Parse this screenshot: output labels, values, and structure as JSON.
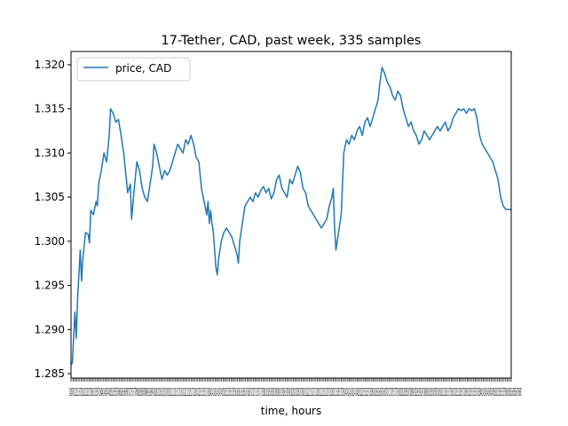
{
  "chart_data": {
    "type": "line",
    "title": "17-Tether, CAD, past week, 335 samples",
    "xlabel": "time, hours",
    "ylabel": "",
    "ylim": [
      1.2845,
      1.3215
    ],
    "yticks": [
      1.285,
      1.29,
      1.295,
      1.3,
      1.305,
      1.31,
      1.315,
      1.32
    ],
    "ytick_labels": [
      "1.285",
      "1.290",
      "1.295",
      "1.300",
      "1.305",
      "1.310",
      "1.315",
      "1.320"
    ],
    "xlim": [
      0,
      334
    ],
    "x_tick_label_text": "02457810121315171820222325272830323335373840424345474850525355575860626365676870727375777880828385878890929395979810010210310510710811011211311511711812012212312512712813013213313513713814014214314514714815015215315515715816016216316516716817017217317517717818018218318518718819019219319519719820020220320520720821021221321521721822022222322522722823023223323523723824024224324524724825025225325525725826026226326526726827027227327527727828028228328528728829029229329529729830030230330530730831031231331531731832032232332532732833033233333533733834034234334534734835035235335535735836036236336536736837",
    "legend_position": "upper-left",
    "grid": false,
    "colors": {
      "line": "#1f77b4"
    },
    "series": [
      {
        "name": "price, CAD",
        "anchors": [
          [
            0,
            1.286
          ],
          [
            1,
            1.2862
          ],
          [
            3,
            1.292
          ],
          [
            4,
            1.289
          ],
          [
            5,
            1.2935
          ],
          [
            7,
            1.299
          ],
          [
            8,
            1.2955
          ],
          [
            9,
            1.298
          ],
          [
            11,
            1.301
          ],
          [
            13,
            1.3008
          ],
          [
            14,
            1.2998
          ],
          [
            15,
            1.3035
          ],
          [
            17,
            1.303
          ],
          [
            19,
            1.3045
          ],
          [
            20,
            1.304
          ],
          [
            21,
            1.3065
          ],
          [
            23,
            1.308
          ],
          [
            25,
            1.31
          ],
          [
            27,
            1.309
          ],
          [
            29,
            1.312
          ],
          [
            30,
            1.315
          ],
          [
            32,
            1.3145
          ],
          [
            34,
            1.3135
          ],
          [
            36,
            1.3138
          ],
          [
            38,
            1.312
          ],
          [
            40,
            1.31
          ],
          [
            41,
            1.3085
          ],
          [
            43,
            1.3055
          ],
          [
            45,
            1.3065
          ],
          [
            46,
            1.3025
          ],
          [
            48,
            1.306
          ],
          [
            50,
            1.309
          ],
          [
            52,
            1.308
          ],
          [
            54,
            1.306
          ],
          [
            56,
            1.305
          ],
          [
            58,
            1.3045
          ],
          [
            60,
            1.3065
          ],
          [
            62,
            1.3085
          ],
          [
            63,
            1.311
          ],
          [
            65,
            1.31
          ],
          [
            67,
            1.3085
          ],
          [
            69,
            1.307
          ],
          [
            71,
            1.308
          ],
          [
            73,
            1.3075
          ],
          [
            75,
            1.308
          ],
          [
            77,
            1.309
          ],
          [
            79,
            1.31
          ],
          [
            81,
            1.311
          ],
          [
            83,
            1.3105
          ],
          [
            85,
            1.31
          ],
          [
            87,
            1.3115
          ],
          [
            89,
            1.311
          ],
          [
            91,
            1.312
          ],
          [
            93,
            1.311
          ],
          [
            95,
            1.3095
          ],
          [
            97,
            1.309
          ],
          [
            99,
            1.306
          ],
          [
            101,
            1.3045
          ],
          [
            103,
            1.303
          ],
          [
            104,
            1.3045
          ],
          [
            105,
            1.302
          ],
          [
            106,
            1.3035
          ],
          [
            107,
            1.302
          ],
          [
            108,
            1.301
          ],
          [
            109,
            1.299
          ],
          [
            110,
            1.297
          ],
          [
            111,
            1.2962
          ],
          [
            112,
            1.298
          ],
          [
            114,
            1.3
          ],
          [
            116,
            1.301
          ],
          [
            118,
            1.3015
          ],
          [
            120,
            1.301
          ],
          [
            122,
            1.3005
          ],
          [
            124,
            1.2995
          ],
          [
            126,
            1.2985
          ],
          [
            127,
            1.2975
          ],
          [
            128,
            1.3
          ],
          [
            130,
            1.302
          ],
          [
            132,
            1.304
          ],
          [
            134,
            1.3045
          ],
          [
            136,
            1.305
          ],
          [
            138,
            1.3045
          ],
          [
            140,
            1.3055
          ],
          [
            142,
            1.305
          ],
          [
            144,
            1.3058
          ],
          [
            146,
            1.3062
          ],
          [
            148,
            1.3055
          ],
          [
            150,
            1.306
          ],
          [
            152,
            1.3048
          ],
          [
            154,
            1.3055
          ],
          [
            156,
            1.307
          ],
          [
            158,
            1.3075
          ],
          [
            160,
            1.306
          ],
          [
            162,
            1.3055
          ],
          [
            164,
            1.305
          ],
          [
            166,
            1.307
          ],
          [
            168,
            1.3065
          ],
          [
            170,
            1.3075
          ],
          [
            172,
            1.3085
          ],
          [
            174,
            1.3078
          ],
          [
            176,
            1.306
          ],
          [
            178,
            1.3055
          ],
          [
            180,
            1.304
          ],
          [
            182,
            1.3035
          ],
          [
            184,
            1.303
          ],
          [
            186,
            1.3025
          ],
          [
            188,
            1.302
          ],
          [
            190,
            1.3015
          ],
          [
            192,
            1.302
          ],
          [
            194,
            1.3025
          ],
          [
            196,
            1.304
          ],
          [
            198,
            1.305
          ],
          [
            199,
            1.306
          ],
          [
            200,
            1.3015
          ],
          [
            201,
            1.299
          ],
          [
            203,
            1.301
          ],
          [
            205,
            1.303
          ],
          [
            207,
            1.31
          ],
          [
            209,
            1.3115
          ],
          [
            211,
            1.311
          ],
          [
            213,
            1.312
          ],
          [
            215,
            1.3115
          ],
          [
            217,
            1.3125
          ],
          [
            219,
            1.313
          ],
          [
            221,
            1.312
          ],
          [
            223,
            1.3135
          ],
          [
            225,
            1.314
          ],
          [
            227,
            1.313
          ],
          [
            229,
            1.314
          ],
          [
            231,
            1.315
          ],
          [
            233,
            1.316
          ],
          [
            234,
            1.3175
          ],
          [
            236,
            1.3197
          ],
          [
            238,
            1.319
          ],
          [
            240,
            1.318
          ],
          [
            242,
            1.3175
          ],
          [
            244,
            1.3165
          ],
          [
            246,
            1.316
          ],
          [
            248,
            1.317
          ],
          [
            250,
            1.3165
          ],
          [
            252,
            1.315
          ],
          [
            254,
            1.314
          ],
          [
            256,
            1.313
          ],
          [
            258,
            1.3135
          ],
          [
            260,
            1.3125
          ],
          [
            262,
            1.312
          ],
          [
            264,
            1.311
          ],
          [
            266,
            1.3115
          ],
          [
            268,
            1.3125
          ],
          [
            270,
            1.312
          ],
          [
            272,
            1.3115
          ],
          [
            274,
            1.312
          ],
          [
            276,
            1.3125
          ],
          [
            278,
            1.313
          ],
          [
            280,
            1.3125
          ],
          [
            282,
            1.313
          ],
          [
            284,
            1.3135
          ],
          [
            286,
            1.3125
          ],
          [
            288,
            1.313
          ],
          [
            290,
            1.314
          ],
          [
            292,
            1.3145
          ],
          [
            294,
            1.315
          ],
          [
            296,
            1.3148
          ],
          [
            298,
            1.315
          ],
          [
            300,
            1.3145
          ],
          [
            302,
            1.315
          ],
          [
            304,
            1.3148
          ],
          [
            306,
            1.315
          ],
          [
            308,
            1.314
          ],
          [
            310,
            1.312
          ],
          [
            312,
            1.311
          ],
          [
            314,
            1.3105
          ],
          [
            316,
            1.31
          ],
          [
            318,
            1.3095
          ],
          [
            320,
            1.309
          ],
          [
            322,
            1.308
          ],
          [
            324,
            1.307
          ],
          [
            326,
            1.305
          ],
          [
            328,
            1.304
          ],
          [
            330,
            1.3036
          ],
          [
            332,
            1.3036
          ],
          [
            334,
            1.3036
          ]
        ]
      }
    ]
  }
}
